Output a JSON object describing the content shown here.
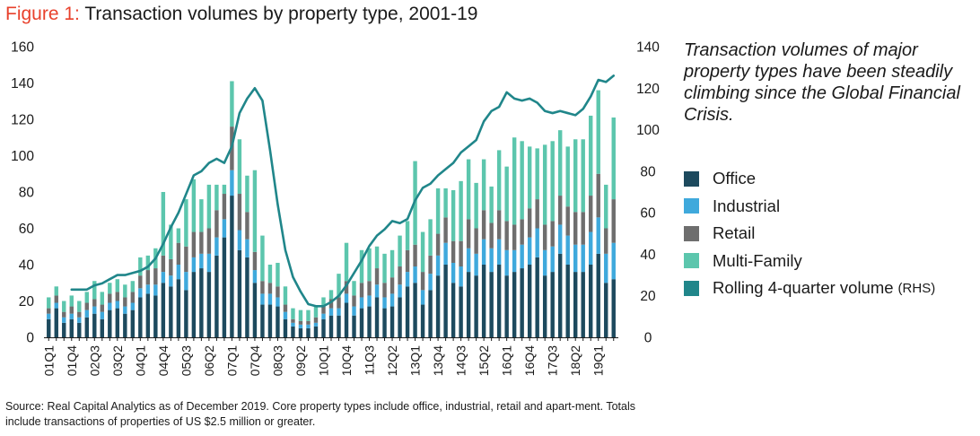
{
  "figure": {
    "label": "Figure 1:",
    "title": "Transaction volumes by property type, 2001-19",
    "annotation": "Transaction volumes of major property types have been steadily climbing since the Global Financial Crisis.",
    "source": "Source: Real Capital Analytics as of December 2019. Core property types include office, industrial, retail and apart-ment. Totals include transactions of properties of US $2.5 million or greater."
  },
  "chart_data": {
    "type": "bar",
    "stacked": true,
    "title": "Transaction volumes by property type, 2001-19",
    "xlabel": "",
    "ylabel": "",
    "y_left_lim": [
      0,
      160
    ],
    "y_left_ticks": [
      0,
      20,
      40,
      60,
      80,
      100,
      120,
      140,
      160
    ],
    "y_right_lim": [
      0,
      140
    ],
    "y_right_ticks": [
      0,
      20,
      40,
      60,
      80,
      100,
      120,
      140
    ],
    "grid": false,
    "legend_position": "right",
    "x_tick_labels": [
      "01Q1",
      "01Q4",
      "02Q3",
      "03Q2",
      "04Q1",
      "04Q4",
      "05Q3",
      "06Q2",
      "07Q1",
      "07Q4",
      "08Q3",
      "09Q2",
      "10Q1",
      "10Q4",
      "11Q3",
      "12Q2",
      "13Q1",
      "13Q4",
      "14Q3",
      "15Q2",
      "16Q1",
      "16Q4",
      "17Q3",
      "18Q2",
      "19Q1"
    ],
    "categories": [
      "01Q1",
      "01Q2",
      "01Q3",
      "01Q4",
      "02Q1",
      "02Q2",
      "02Q3",
      "02Q4",
      "03Q1",
      "03Q2",
      "03Q3",
      "03Q4",
      "04Q1",
      "04Q2",
      "04Q3",
      "04Q4",
      "05Q1",
      "05Q2",
      "05Q3",
      "05Q4",
      "06Q1",
      "06Q2",
      "06Q3",
      "06Q4",
      "07Q1",
      "07Q2",
      "07Q3",
      "07Q4",
      "08Q1",
      "08Q2",
      "08Q3",
      "08Q4",
      "09Q1",
      "09Q2",
      "09Q3",
      "09Q4",
      "10Q1",
      "10Q2",
      "10Q3",
      "10Q4",
      "11Q1",
      "11Q2",
      "11Q3",
      "11Q4",
      "12Q1",
      "12Q2",
      "12Q3",
      "12Q4",
      "13Q1",
      "13Q2",
      "13Q3",
      "13Q4",
      "14Q1",
      "14Q2",
      "14Q3",
      "14Q4",
      "15Q1",
      "15Q2",
      "15Q3",
      "15Q4",
      "16Q1",
      "16Q2",
      "16Q3",
      "16Q4",
      "17Q1",
      "17Q2",
      "17Q3",
      "17Q4",
      "18Q1",
      "18Q2",
      "18Q3",
      "18Q4",
      "19Q1",
      "19Q2",
      "19Q3"
    ],
    "series": [
      {
        "name": "Office",
        "color": "#1d4a5e",
        "values": [
          10,
          16,
          8,
          10,
          8,
          11,
          13,
          10,
          15,
          16,
          13,
          15,
          22,
          24,
          23,
          30,
          28,
          32,
          26,
          36,
          38,
          36,
          45,
          55,
          78,
          48,
          44,
          30,
          18,
          18,
          17,
          10,
          6,
          5,
          5,
          6,
          10,
          12,
          12,
          19,
          12,
          16,
          17,
          22,
          16,
          17,
          22,
          28,
          30,
          18,
          26,
          34,
          40,
          30,
          28,
          36,
          34,
          40,
          36,
          40,
          34,
          36,
          38,
          40,
          44,
          34,
          36,
          46,
          40,
          36,
          36,
          40,
          46,
          30,
          32
        ]
      },
      {
        "name": "Industrial",
        "color": "#3fa9dc",
        "values": [
          3,
          3,
          3,
          3,
          3,
          4,
          4,
          4,
          4,
          4,
          4,
          4,
          5,
          5,
          6,
          6,
          6,
          8,
          10,
          8,
          8,
          10,
          10,
          10,
          14,
          11,
          10,
          7,
          6,
          6,
          5,
          4,
          2,
          2,
          2,
          2,
          3,
          4,
          4,
          5,
          5,
          6,
          6,
          7,
          6,
          7,
          7,
          8,
          9,
          8,
          9,
          11,
          12,
          11,
          11,
          13,
          12,
          14,
          13,
          14,
          14,
          12,
          13,
          15,
          16,
          14,
          14,
          16,
          16,
          15,
          15,
          18,
          20,
          16,
          20
        ]
      },
      {
        "name": "Retail",
        "color": "#6e6e6e",
        "values": [
          3,
          4,
          3,
          4,
          3,
          4,
          4,
          4,
          5,
          5,
          5,
          6,
          7,
          8,
          9,
          9,
          9,
          12,
          14,
          14,
          12,
          14,
          15,
          14,
          24,
          20,
          15,
          10,
          7,
          6,
          6,
          4,
          2,
          2,
          2,
          3,
          4,
          5,
          6,
          7,
          6,
          8,
          8,
          9,
          8,
          9,
          10,
          12,
          12,
          10,
          10,
          12,
          14,
          12,
          14,
          16,
          14,
          16,
          14,
          16,
          16,
          14,
          14,
          16,
          16,
          14,
          14,
          16,
          16,
          18,
          18,
          20,
          24,
          14,
          24
        ]
      },
      {
        "name": "Multi-Family",
        "color": "#5cc6ad",
        "values": [
          6,
          5,
          6,
          6,
          6,
          6,
          10,
          7,
          6,
          7,
          7,
          6,
          10,
          8,
          11,
          35,
          19,
          8,
          26,
          29,
          18,
          24,
          14,
          5,
          25,
          30,
          20,
          45,
          25,
          10,
          13,
          10,
          6,
          6,
          6,
          6,
          5,
          5,
          13,
          21,
          8,
          18,
          18,
          12,
          16,
          15,
          17,
          16,
          46,
          22,
          20,
          25,
          16,
          28,
          33,
          33,
          25,
          28,
          20,
          33,
          30,
          48,
          43,
          34,
          28,
          44,
          44,
          36,
          33,
          40,
          40,
          44,
          46,
          24,
          45
        ]
      },
      {
        "name": "Rolling 4-quarter volume",
        "type": "line",
        "axis": "right",
        "color": "#20868a",
        "values": [
          null,
          null,
          null,
          23,
          23,
          23,
          25,
          26,
          28,
          30,
          30,
          31,
          32,
          34,
          38,
          45,
          53,
          60,
          69,
          78,
          80,
          84,
          86,
          84,
          92,
          108,
          115,
          120,
          114,
          90,
          64,
          42,
          29,
          22,
          16,
          15,
          15,
          17,
          20,
          25,
          31,
          37,
          44,
          49,
          52,
          56,
          55,
          57,
          66,
          72,
          74,
          78,
          81,
          84,
          89,
          92,
          95,
          104,
          109,
          111,
          118,
          115,
          114,
          115,
          113,
          109,
          108,
          109,
          108,
          107,
          110,
          116,
          124,
          123,
          126
        ]
      }
    ]
  },
  "legend": [
    {
      "label": "Office",
      "color": "#1d4a5e",
      "suffix": ""
    },
    {
      "label": "Industrial",
      "color": "#3fa9dc",
      "suffix": ""
    },
    {
      "label": "Retail",
      "color": "#6e6e6e",
      "suffix": ""
    },
    {
      "label": "Multi-Family",
      "color": "#5cc6ad",
      "suffix": ""
    },
    {
      "label": "Rolling 4-quarter volume",
      "color": "#20868a",
      "suffix": "(RHS)"
    }
  ]
}
